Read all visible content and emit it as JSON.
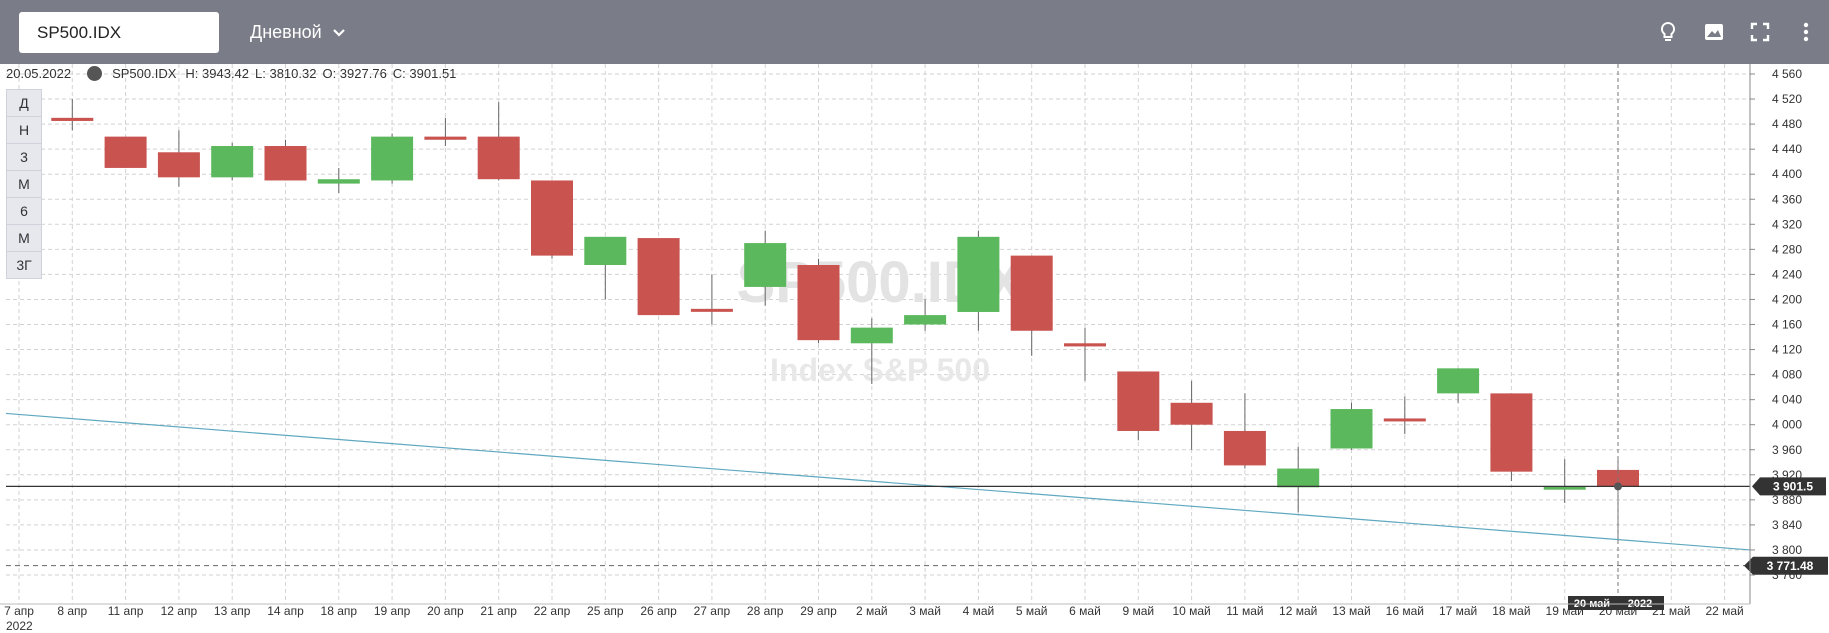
{
  "toolbar": {
    "symbol": "SP500.IDX",
    "period": "Дневной",
    "icons": [
      "lightbulb-icon",
      "image-icon",
      "fullscreen-icon",
      "more-vertical-icon"
    ]
  },
  "info": {
    "date": "20.05.2022",
    "symbol": "SP500.IDX",
    "high": "H: 3943.42",
    "low": "L: 3810.32",
    "open": "O: 3927.76",
    "close": "C: 3901.51"
  },
  "ranges": [
    "Д",
    "Н",
    "3",
    "М",
    "6",
    "М",
    "3Г"
  ],
  "watermark": {
    "title": "SP500.IDX",
    "subtitle": "Index S&P 500"
  },
  "colors": {
    "up": "#5cb85c",
    "down": "#c9534f",
    "trendline": "#5fa8c0",
    "lastPrice": "#333333"
  },
  "chart_data": {
    "type": "candlestick",
    "ylim": [
      3740,
      4580
    ],
    "yticks": [
      "4 560",
      "4 520",
      "4 480",
      "4 440",
      "4 400",
      "4 360",
      "4 320",
      "4 280",
      "4 240",
      "4 200",
      "4 160",
      "4 120",
      "4 080",
      "4 040",
      "4 000",
      "3 960",
      "3 920",
      "3 880",
      "3 840",
      "3 800",
      "3 760"
    ],
    "ytick_values": [
      4560,
      4520,
      4480,
      4440,
      4400,
      4360,
      4320,
      4280,
      4240,
      4200,
      4160,
      4120,
      4080,
      4040,
      4000,
      3960,
      3920,
      3880,
      3840,
      3800,
      3760
    ],
    "xticks": [
      "7 апр",
      "8 апр",
      "11 апр",
      "12 апр",
      "13 апр",
      "14 апр",
      "18 апр",
      "19 апр",
      "20 апр",
      "21 апр",
      "22 апр",
      "25 апр",
      "26 апр",
      "27 апр",
      "28 апр",
      "29 апр",
      "2 май",
      "3 май",
      "4 май",
      "5 май",
      "6 май",
      "9 май",
      "10 май",
      "11 май",
      "12 май",
      "13 май",
      "16 май",
      "17 май",
      "18 май",
      "19 май",
      "20 май",
      "21 май",
      "22 май"
    ],
    "year_label": "2022",
    "candles": [
      {
        "date": "8 апр",
        "o": 4490,
        "h": 4520,
        "l": 4470,
        "c": 4485
      },
      {
        "date": "11 апр",
        "o": 4460,
        "h": 4460,
        "l": 4410,
        "c": 4410
      },
      {
        "date": "12 апр",
        "o": 4435,
        "h": 4470,
        "l": 4380,
        "c": 4395
      },
      {
        "date": "13 апр",
        "o": 4395,
        "h": 4450,
        "l": 4390,
        "c": 4445
      },
      {
        "date": "14 апр",
        "o": 4445,
        "h": 4455,
        "l": 4390,
        "c": 4390
      },
      {
        "date": "18 апр",
        "o": 4385,
        "h": 4410,
        "l": 4370,
        "c": 4392
      },
      {
        "date": "19 апр",
        "o": 4390,
        "h": 4465,
        "l": 4385,
        "c": 4460
      },
      {
        "date": "20 апр",
        "o": 4460,
        "h": 4490,
        "l": 4445,
        "c": 4455
      },
      {
        "date": "21 апр",
        "o": 4460,
        "h": 4515,
        "l": 4390,
        "c": 4392
      },
      {
        "date": "22 апр",
        "o": 4390,
        "h": 4390,
        "l": 4265,
        "c": 4270
      },
      {
        "date": "25 апр",
        "o": 4255,
        "h": 4300,
        "l": 4200,
        "c": 4300
      },
      {
        "date": "26 апр",
        "o": 4298,
        "h": 4298,
        "l": 4175,
        "c": 4175
      },
      {
        "date": "27 апр",
        "o": 4185,
        "h": 4240,
        "l": 4160,
        "c": 4183
      },
      {
        "date": "28 апр",
        "o": 4220,
        "h": 4310,
        "l": 4190,
        "c": 4290
      },
      {
        "date": "29 апр",
        "o": 4255,
        "h": 4265,
        "l": 4130,
        "c": 4135
      },
      {
        "date": "2 май",
        "o": 4130,
        "h": 4170,
        "l": 4065,
        "c": 4155
      },
      {
        "date": "3 май",
        "o": 4160,
        "h": 4200,
        "l": 4150,
        "c": 4175
      },
      {
        "date": "4 май",
        "o": 4180,
        "h": 4310,
        "l": 4150,
        "c": 4300
      },
      {
        "date": "5 май",
        "o": 4270,
        "h": 4270,
        "l": 4110,
        "c": 4150
      },
      {
        "date": "6 май",
        "o": 4130,
        "h": 4155,
        "l": 4070,
        "c": 4125
      },
      {
        "date": "9 май",
        "o": 4085,
        "h": 4085,
        "l": 3975,
        "c": 3990
      },
      {
        "date": "10 май",
        "o": 4035,
        "h": 4070,
        "l": 3960,
        "c": 4000
      },
      {
        "date": "11 май",
        "o": 3990,
        "h": 4050,
        "l": 3930,
        "c": 3935
      },
      {
        "date": "12 май",
        "o": 3900,
        "h": 3965,
        "l": 3860,
        "c": 3930
      },
      {
        "date": "13 май",
        "o": 3962,
        "h": 4035,
        "l": 3960,
        "c": 4025
      },
      {
        "date": "16 май",
        "o": 4010,
        "h": 4045,
        "l": 3985,
        "c": 4008
      },
      {
        "date": "17 май",
        "o": 4050,
        "h": 4090,
        "l": 4035,
        "c": 4090
      },
      {
        "date": "18 май",
        "o": 4050,
        "h": 4050,
        "l": 3910,
        "c": 3925
      },
      {
        "date": "19 май",
        "o": 3900,
        "h": 3945,
        "l": 3875,
        "c": 3901
      },
      {
        "date": "20 май",
        "o": 3927.76,
        "h": 3943.42,
        "l": 3810.32,
        "c": 3901.51
      }
    ],
    "last_price_label": "3 901.5",
    "last_price": 3901.51,
    "trendline_end_label": "3 771.48",
    "trendline_end_value": 3771.48,
    "crosshair_x_label": "20 май",
    "crosshair_year": "2022",
    "grid": true
  }
}
